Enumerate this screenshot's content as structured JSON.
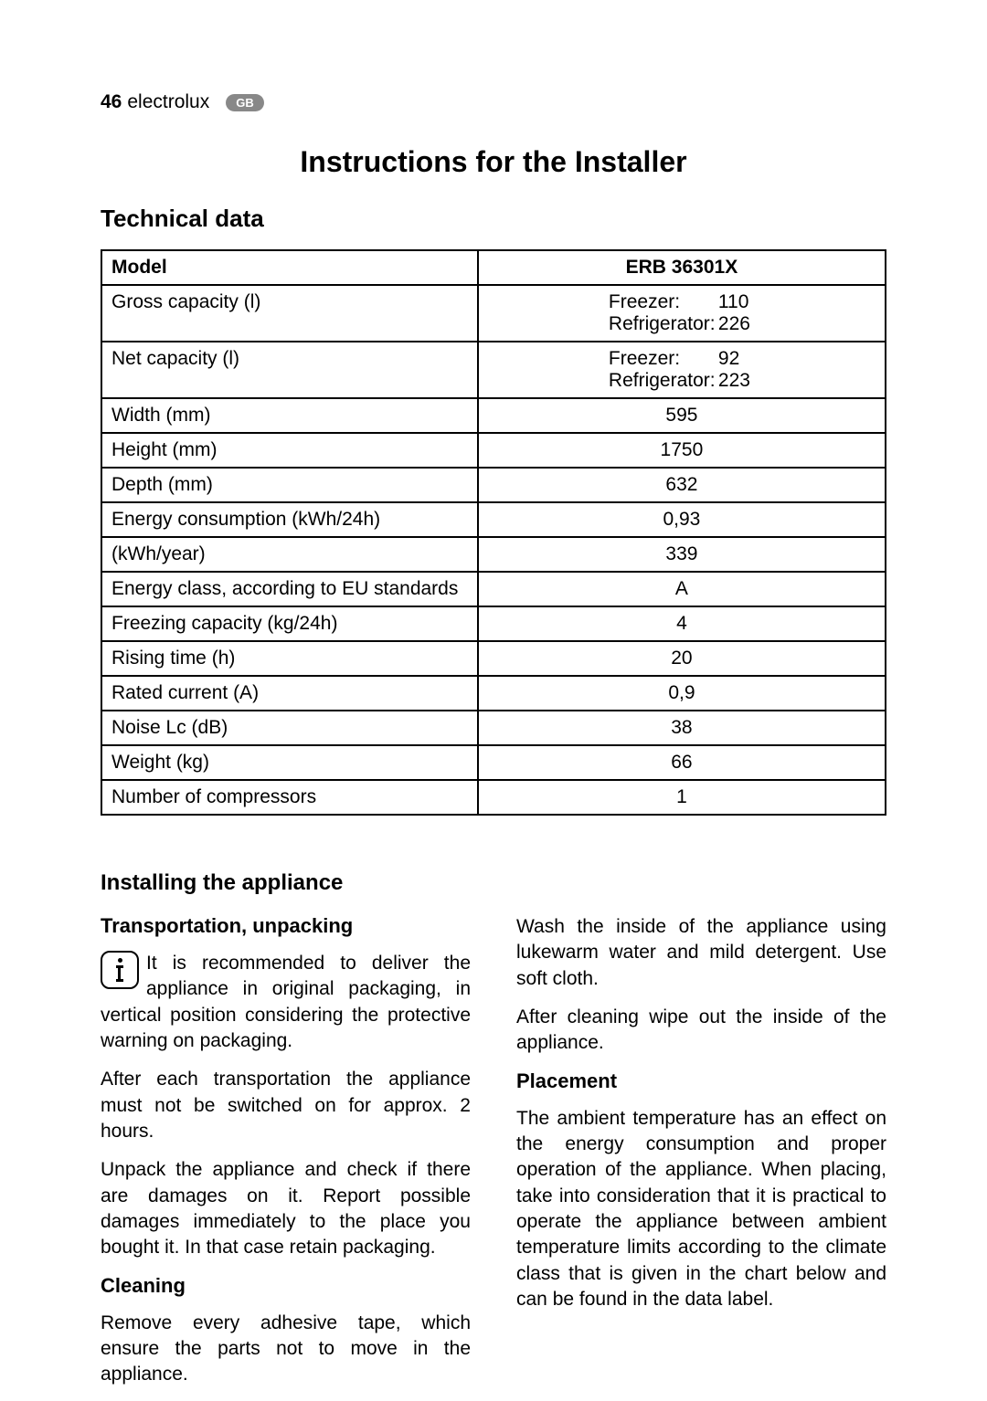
{
  "header": {
    "page_number": "46",
    "brand": "electrolux",
    "badge": "GB"
  },
  "main_title": "Instructions for the Installer",
  "technical_data": {
    "title": "Technical data",
    "col1_header": "Model",
    "col2_header": "ERB 36301X",
    "rows": [
      {
        "label": "Gross capacity (l)",
        "type": "split",
        "lines": [
          [
            "Freezer:",
            "110"
          ],
          [
            "Refrigerator:",
            "226"
          ]
        ]
      },
      {
        "label": "Net capacity (l)",
        "type": "split",
        "lines": [
          [
            "Freezer:",
            "92"
          ],
          [
            "Refrigerator:",
            "223"
          ]
        ]
      },
      {
        "label": "Width (mm)",
        "type": "simple",
        "value": "595"
      },
      {
        "label": "Height (mm)",
        "type": "simple",
        "value": "1750"
      },
      {
        "label": "Depth (mm)",
        "type": "simple",
        "value": "632"
      },
      {
        "label": "Energy consumption (kWh/24h)",
        "type": "simple",
        "value": "0,93"
      },
      {
        "label": "(kWh/year)",
        "type": "simple",
        "value": "339",
        "label_align": "right"
      },
      {
        "label": "Energy class, according to EU standards",
        "type": "simple",
        "value": "A"
      },
      {
        "label": "Freezing capacity (kg/24h)",
        "type": "simple",
        "value": "4"
      },
      {
        "label": "Rising time (h)",
        "type": "simple",
        "value": "20"
      },
      {
        "label": "Rated current (A)",
        "type": "simple",
        "value": "0,9"
      },
      {
        "label": "Noise Lc  (dB)",
        "type": "simple",
        "value": "38"
      },
      {
        "label": "Weight (kg)",
        "type": "simple",
        "value": "66"
      },
      {
        "label": "Number of compressors",
        "type": "simple",
        "value": "1"
      }
    ]
  },
  "installing": {
    "title": "Installing the appliance",
    "left": {
      "sub1_title": "Transportation, unpacking",
      "p1": "It is recommended to deliver the appliance in original packaging, in vertical position considering the protective warning on packaging.",
      "p2": "After each transportation the appliance must not be switched on for approx. 2 hours.",
      "p3": "Unpack the appliance and check if there are damages on it. Report possible damages immediately to the place you bought it. In that case retain packaging.",
      "sub2_title": "Cleaning",
      "p4": "Remove every adhesive tape, which ensure the parts not to move in the appliance."
    },
    "right": {
      "p1": "Wash the inside of the appliance using lukewarm water and mild detergent. Use soft cloth.",
      "p2": "After cleaning wipe out the inside of the appliance.",
      "sub_title": "Placement",
      "p3": "The ambient temperature has an effect on the energy consumption and proper operation of the appliance. When placing, take into consideration that it is practical to operate the appliance between ambient temperature limits according to the climate class that is given in the chart below and can be found in the data label."
    }
  }
}
